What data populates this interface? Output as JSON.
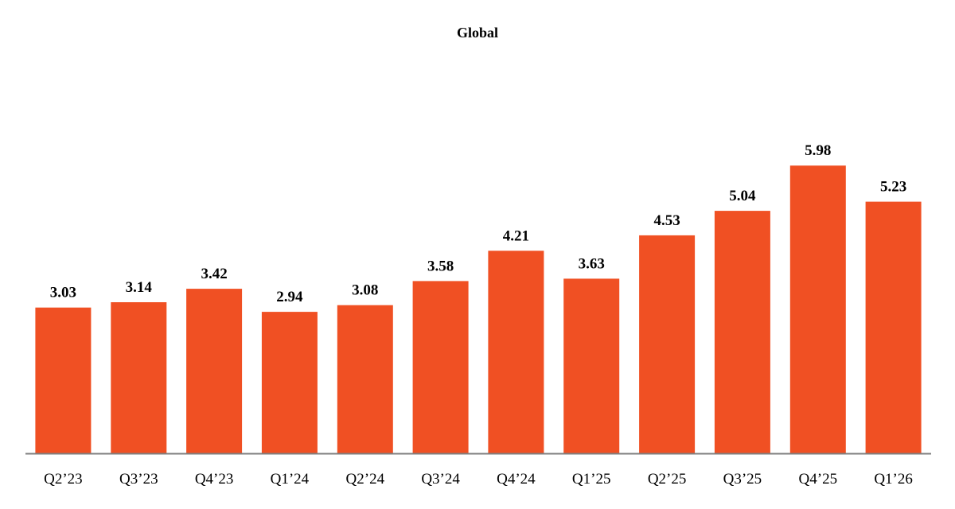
{
  "chart_data": {
    "type": "bar",
    "title": "Global",
    "xlabel": "",
    "ylabel": "",
    "categories": [
      "Q2’23",
      "Q3’23",
      "Q4’23",
      "Q1’24",
      "Q2’24",
      "Q3’24",
      "Q4’24",
      "Q1’25",
      "Q2’25",
      "Q3’25",
      "Q4’25",
      "Q1’26"
    ],
    "values": [
      3.03,
      3.14,
      3.42,
      2.94,
      3.08,
      3.58,
      4.21,
      3.63,
      4.53,
      5.04,
      5.98,
      5.23
    ],
    "value_labels": [
      "3.03",
      "3.14",
      "3.42",
      "2.94",
      "3.08",
      "3.58",
      "4.21",
      "3.63",
      "4.53",
      "5.04",
      "5.98",
      "5.23"
    ],
    "ylim": [
      0,
      7
    ],
    "grid": false,
    "legend": "none",
    "bar_color": "#F05023",
    "axis_color": "#7f7f7f"
  }
}
